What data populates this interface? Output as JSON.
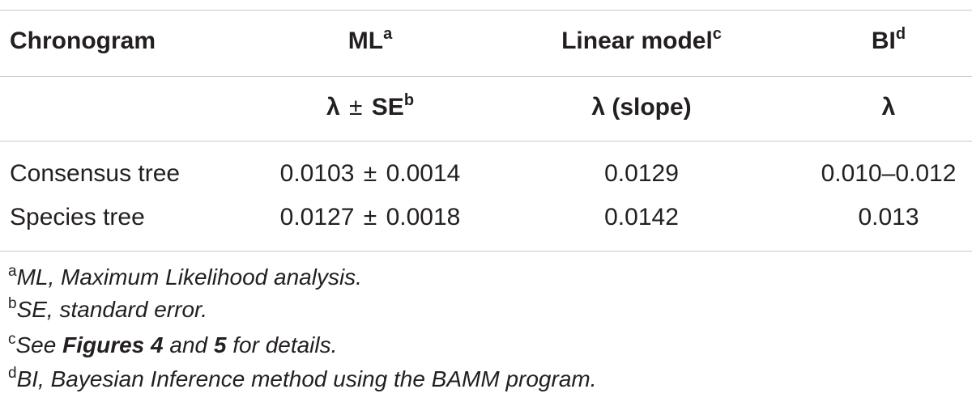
{
  "table": {
    "header": {
      "col1": "Chronogram",
      "col2": "ML",
      "col2_sup": "a",
      "col3": "Linear model",
      "col3_sup": "c",
      "col4": "BI",
      "col4_sup": "d"
    },
    "subheader": {
      "col2_lambda": "λ",
      "col2_pm": "±",
      "col2_se": "SE",
      "col2_sup": "b",
      "col3": "λ (slope)",
      "col4": "λ"
    },
    "rows": [
      {
        "chronogram": "Consensus tree",
        "ml_value": "0.0103",
        "ml_pm": "±",
        "ml_se": "0.0014",
        "linear": "0.0129",
        "bi": "0.010–0.012"
      },
      {
        "chronogram": "Species tree",
        "ml_value": "0.0127",
        "ml_pm": "±",
        "ml_se": "0.0018",
        "linear": "0.0142",
        "bi": "0.013"
      }
    ]
  },
  "footnotes": [
    {
      "mark": "a",
      "text": "ML, Maximum Likelihood analysis."
    },
    {
      "mark": "b",
      "text": "SE, standard error."
    },
    {
      "mark": "c",
      "pre": "See ",
      "bold1": "Figures 4",
      "mid": " and ",
      "bold2": "5",
      "post": " for details."
    },
    {
      "mark": "d",
      "text": "BI, Bayesian Inference method using the BAMM program."
    }
  ]
}
